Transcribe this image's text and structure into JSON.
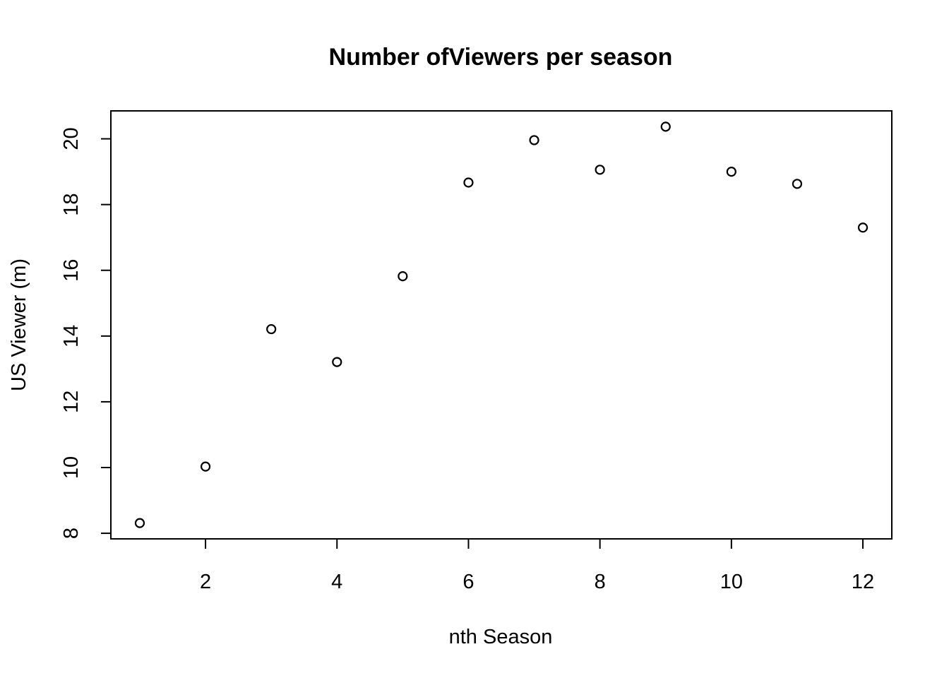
{
  "chart_data": {
    "type": "scatter",
    "title": "Number ofViewers per season",
    "xlabel": "nth Season",
    "ylabel": "US Viewer (m)",
    "x": [
      1,
      2,
      3,
      4,
      5,
      6,
      7,
      8,
      9,
      10,
      11,
      12
    ],
    "y": [
      8.31,
      10.03,
      14.21,
      13.21,
      15.82,
      18.67,
      19.96,
      19.06,
      20.37,
      19.0,
      18.63,
      17.3
    ],
    "x_ticks": [
      2,
      4,
      6,
      8,
      10,
      12
    ],
    "y_ticks": [
      8,
      10,
      12,
      14,
      16,
      18,
      20
    ],
    "xlim": [
      0.56,
      12.44
    ],
    "ylim": [
      7.83,
      20.85
    ],
    "grid": false,
    "legend": false,
    "marker": "open-circle",
    "colors": {
      "background": "#ffffff",
      "ink": "#000000"
    }
  }
}
